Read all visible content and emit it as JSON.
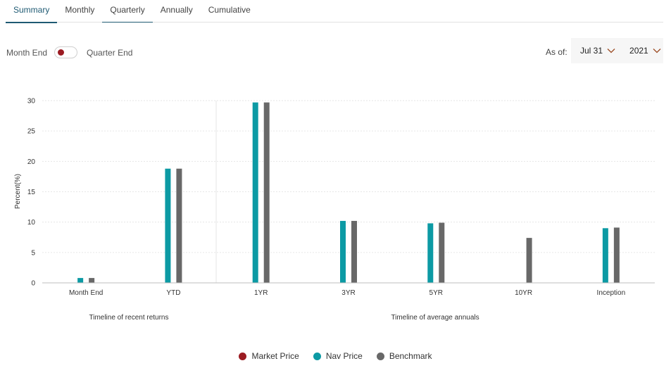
{
  "tabs": [
    "Summary",
    "Monthly",
    "Quarterly",
    "Annually",
    "Cumulative"
  ],
  "toggle": {
    "left_label": "Month End",
    "right_label": "Quarter End"
  },
  "asof": {
    "label": "As of:",
    "month": "Jul 31",
    "year": "2021"
  },
  "colors": {
    "market": "#9b1b22",
    "nav": "#0c9aa4",
    "benchmark": "#686868"
  },
  "chart_data": {
    "type": "bar",
    "categories": [
      "Month End",
      "YTD",
      "1YR",
      "3YR",
      "5YR",
      "10YR",
      "Inception"
    ],
    "groups": [
      {
        "label": "Timeline of recent returns",
        "categories": [
          "Month End",
          "YTD"
        ]
      },
      {
        "label": "Timeline of average annuals",
        "categories": [
          "1YR",
          "3YR",
          "5YR",
          "10YR",
          "Inception"
        ]
      }
    ],
    "series": [
      {
        "name": "Market Price",
        "values": [
          null,
          null,
          null,
          null,
          null,
          null,
          null
        ]
      },
      {
        "name": "Nav Price",
        "values": [
          0.8,
          18.8,
          29.7,
          10.2,
          9.8,
          null,
          9.0
        ]
      },
      {
        "name": "Benchmark",
        "values": [
          0.8,
          18.8,
          29.7,
          10.2,
          9.9,
          7.4,
          9.1
        ]
      }
    ],
    "ylabel": "Percent(%)",
    "ylim": [
      0,
      30
    ],
    "yticks": [
      "0",
      "5",
      "10",
      "15",
      "20",
      "25",
      "30"
    ],
    "grid": true,
    "legend": "bottom-center"
  }
}
